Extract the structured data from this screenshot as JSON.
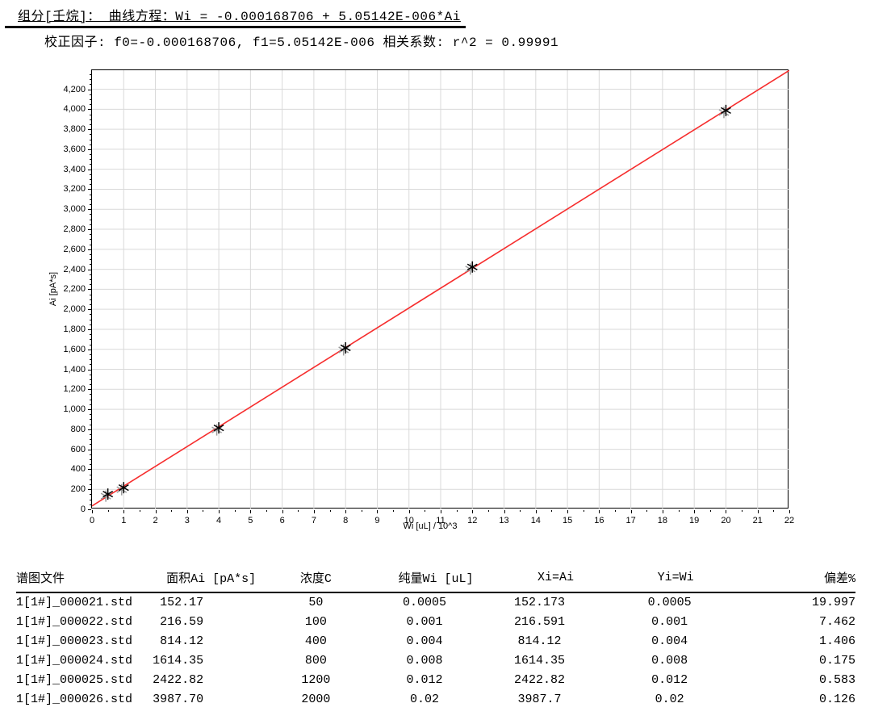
{
  "header": {
    "line1": "组分[壬烷]：  曲线方程：Wi = -0.000168706 + 5.05142E-006*Ai",
    "line2": "校正因子: f0=-0.000168706, f1=5.05142E-006  相关系数: r^2 = 0.99991"
  },
  "chart_data": {
    "type": "scatter",
    "title": "",
    "xlabel": "Wi [uL] / 10^3",
    "ylabel": "Ai [pA*s]",
    "xlim": [
      0,
      22
    ],
    "ylim": [
      0,
      4390
    ],
    "x_ticks": {
      "min": 0,
      "max": 22,
      "major_step": 1,
      "minor_step": 0.5
    },
    "y_ticks": {
      "min": 0,
      "max": 4200,
      "major_step": 200,
      "minor_step": 50
    },
    "grid": true,
    "legend": "none",
    "points": [
      {
        "x": 0.5,
        "y": 152.17
      },
      {
        "x": 1,
        "y": 216.59
      },
      {
        "x": 4,
        "y": 814.12
      },
      {
        "x": 8,
        "y": 1614.35
      },
      {
        "x": 12,
        "y": 2422.82
      },
      {
        "x": 20,
        "y": 3987.7
      }
    ],
    "fit_line": {
      "x1": 0,
      "y1": 33.4,
      "x2": 22,
      "y2": 4388.6
    },
    "colors": {
      "line": "#f62d2d",
      "marker": "#000000",
      "marker_shadow": "#9c9c9c",
      "grid": "#d9d9d9",
      "frame": "#000000"
    }
  },
  "table": {
    "headers": [
      "谱图文件",
      "面积Ai [pA*s]",
      "浓度C",
      "纯量Wi [uL]",
      "Xi=Ai",
      "Yi=Wi",
      "偏差%"
    ],
    "rows": [
      [
        "1[1#]_000021.std",
        "152.17",
        "50",
        "0.0005",
        "152.173",
        "0.0005",
        "19.997"
      ],
      [
        "1[1#]_000022.std",
        "216.59",
        "100",
        "0.001",
        "216.591",
        "0.001",
        "7.462"
      ],
      [
        "1[1#]_000023.std",
        "814.12",
        "400",
        "0.004",
        "814.12",
        "0.004",
        "1.406"
      ],
      [
        "1[1#]_000024.std",
        "1614.35",
        "800",
        "0.008",
        "1614.35",
        "0.008",
        "0.175"
      ],
      [
        "1[1#]_000025.std",
        "2422.82",
        "1200",
        "0.012",
        "2422.82",
        "0.012",
        "0.583"
      ],
      [
        "1[1#]_000026.std",
        "3987.70",
        "2000",
        "0.02",
        "3987.7",
        "0.02",
        "0.126"
      ]
    ]
  }
}
